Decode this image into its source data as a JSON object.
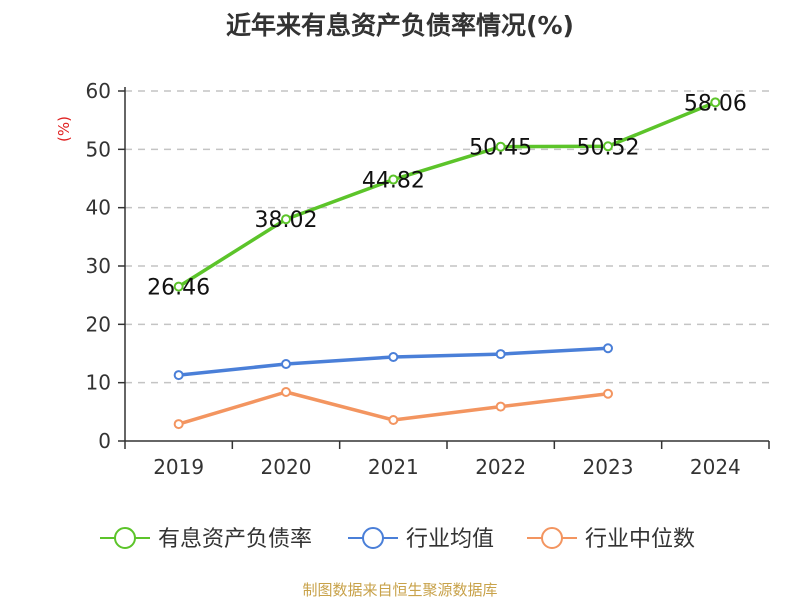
{
  "title": "近年来有息资产负债率情况(%)",
  "footer": "制图数据来自恒生聚源数据库",
  "chart_data": {
    "type": "line",
    "title": "近年来有息资产负债率情况(%)",
    "ylabel": "(%)",
    "xlabel": "",
    "categories": [
      "2019",
      "2020",
      "2021",
      "2022",
      "2023",
      "2024"
    ],
    "ylim": [
      0,
      60
    ],
    "yticks": [
      0,
      10,
      20,
      30,
      40,
      50,
      60
    ],
    "grid": true,
    "legend_position": "bottom",
    "series": [
      {
        "name": "有息资产负债率",
        "color": "#5cc42a",
        "values": [
          26.46,
          38.02,
          44.82,
          50.45,
          50.52,
          58.06
        ],
        "labels": [
          "26.46",
          "38.02",
          "44.82",
          "50.45",
          "50.52",
          "58.06"
        ]
      },
      {
        "name": "行业均值",
        "color": "#4a7fd8",
        "values": [
          11.3,
          13.2,
          14.4,
          14.9,
          15.9,
          null
        ]
      },
      {
        "name": "行业中位数",
        "color": "#f39560",
        "values": [
          2.9,
          8.4,
          3.6,
          5.9,
          8.1,
          null
        ]
      }
    ]
  }
}
